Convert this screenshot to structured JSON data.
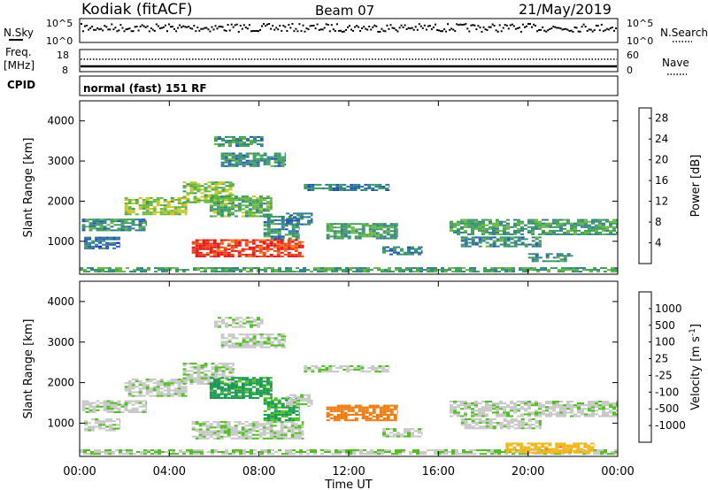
{
  "header": {
    "station": "Kodiak (fitACF)",
    "beam": "Beam 07",
    "date": "21/May/2019"
  },
  "status": {
    "nsky_label": "N.Sky",
    "nsky_top": "10^5",
    "nsky_bottom": "10^0",
    "nsearch_label": "N.Search",
    "nsearch_top": "10^5",
    "nsearch_bottom": "10^0",
    "freq_label": "Freq.",
    "freq_unit": "[MHz]",
    "freq_top": "18",
    "freq_bottom": "8",
    "nave_label": "Nave",
    "nave_top": "60",
    "nave_bottom": "0",
    "cpid_label": "CPID",
    "cpid_text": "normal (fast) 151 RF"
  },
  "chart_data": [
    {
      "type": "heatmap",
      "quantity": "Power",
      "ylabel": "Slant Range [km]",
      "xlabel": "Time UT",
      "x_ticks": [
        "00:00",
        "04:00",
        "08:00",
        "12:00",
        "16:00",
        "20:00",
        "00:00"
      ],
      "x_range_hours": [
        0,
        24
      ],
      "y_ticks": [
        1000,
        2000,
        3000,
        4000
      ],
      "ylim": [
        180,
        4500
      ],
      "colorbar": {
        "label": "Power [dB]",
        "ticks": [
          4,
          8,
          12,
          16,
          20,
          24,
          28
        ],
        "range": [
          0,
          30
        ],
        "colors": [
          "#1010e0",
          "#2850b8",
          "#2e7e8e",
          "#3c9c5c",
          "#64b83c",
          "#c8c820",
          "#e8b010",
          "#f07810",
          "#f04010",
          "#e81010"
        ]
      },
      "regions": [
        {
          "t0": 0.0,
          "t1": 24.0,
          "r0": 220,
          "r1": 320,
          "level": 0.35
        },
        {
          "t0": 0.1,
          "t1": 3.0,
          "r0": 1250,
          "r1": 1550,
          "level": 0.3
        },
        {
          "t0": 2.0,
          "t1": 4.8,
          "r0": 1650,
          "r1": 2100,
          "level": 0.5
        },
        {
          "t0": 4.6,
          "t1": 6.9,
          "r0": 1950,
          "r1": 2450,
          "level": 0.45
        },
        {
          "t0": 5.8,
          "t1": 8.6,
          "r0": 1600,
          "r1": 2100,
          "level": 0.4
        },
        {
          "t0": 6.0,
          "t1": 8.2,
          "r0": 3350,
          "r1": 3600,
          "level": 0.3
        },
        {
          "t0": 6.3,
          "t1": 9.2,
          "r0": 2850,
          "r1": 3200,
          "level": 0.3
        },
        {
          "t0": 5.0,
          "t1": 10.0,
          "r0": 600,
          "r1": 1050,
          "level": 0.9
        },
        {
          "t0": 8.2,
          "t1": 9.8,
          "r0": 1050,
          "r1": 1600,
          "level": 0.3
        },
        {
          "t0": 9.2,
          "t1": 10.4,
          "r0": 1400,
          "r1": 1700,
          "level": 0.25
        },
        {
          "t0": 10.0,
          "t1": 13.8,
          "r0": 2250,
          "r1": 2400,
          "level": 0.25
        },
        {
          "t0": 11.0,
          "t1": 14.2,
          "r0": 1050,
          "r1": 1450,
          "level": 0.35
        },
        {
          "t0": 13.5,
          "t1": 15.3,
          "r0": 650,
          "r1": 850,
          "level": 0.25
        },
        {
          "t0": 16.5,
          "t1": 24.0,
          "r0": 1150,
          "r1": 1550,
          "level": 0.35
        },
        {
          "t0": 17.0,
          "t1": 20.6,
          "r0": 850,
          "r1": 1100,
          "level": 0.3
        },
        {
          "t0": 20.0,
          "t1": 22.0,
          "r0": 480,
          "r1": 700,
          "level": 0.3
        },
        {
          "t0": 0.2,
          "t1": 1.8,
          "r0": 800,
          "r1": 1100,
          "level": 0.2
        }
      ]
    },
    {
      "type": "heatmap",
      "quantity": "Velocity",
      "ylabel": "Slant Range [km]",
      "xlabel": "Time UT",
      "x_ticks": [
        "00:00",
        "04:00",
        "08:00",
        "12:00",
        "16:00",
        "20:00",
        "00:00"
      ],
      "x_range_hours": [
        0,
        24
      ],
      "y_ticks": [
        1000,
        2000,
        3000,
        4000
      ],
      "ylim": [
        180,
        4500
      ],
      "colorbar": {
        "label": "Velocity [m s^-1]",
        "ticks": [
          1000,
          500,
          100,
          25,
          -25,
          -100,
          -500,
          -1000
        ],
        "colors": [
          "#2040c0",
          "#2c7ea0",
          "#1a9a50",
          "#50c020",
          "#c8c8c8",
          "#f0b820",
          "#f07c10",
          "#f04010",
          "#e81010"
        ]
      },
      "regions": [
        {
          "t0": 0.0,
          "t1": 24.0,
          "r0": 220,
          "r1": 320,
          "level": 0.45
        },
        {
          "t0": 0.1,
          "t1": 3.0,
          "r0": 1250,
          "r1": 1550,
          "level": 0.47
        },
        {
          "t0": 2.0,
          "t1": 4.8,
          "r0": 1650,
          "r1": 2100,
          "level": 0.47
        },
        {
          "t0": 4.6,
          "t1": 6.9,
          "r0": 1950,
          "r1": 2450,
          "level": 0.47
        },
        {
          "t0": 5.8,
          "t1": 8.6,
          "r0": 1600,
          "r1": 2100,
          "level": 0.3
        },
        {
          "t0": 6.0,
          "t1": 8.2,
          "r0": 3350,
          "r1": 3600,
          "level": 0.47
        },
        {
          "t0": 6.3,
          "t1": 9.2,
          "r0": 2850,
          "r1": 3200,
          "level": 0.47
        },
        {
          "t0": 5.0,
          "t1": 10.0,
          "r0": 600,
          "r1": 1050,
          "level": 0.47
        },
        {
          "t0": 8.2,
          "t1": 9.8,
          "r0": 1050,
          "r1": 1600,
          "level": 0.32
        },
        {
          "t0": 9.2,
          "t1": 10.4,
          "r0": 1400,
          "r1": 1700,
          "level": 0.47
        },
        {
          "t0": 10.0,
          "t1": 13.8,
          "r0": 2250,
          "r1": 2400,
          "level": 0.47
        },
        {
          "t0": 11.0,
          "t1": 14.2,
          "r0": 1050,
          "r1": 1450,
          "level": 0.72
        },
        {
          "t0": 13.5,
          "t1": 15.3,
          "r0": 650,
          "r1": 850,
          "level": 0.47
        },
        {
          "t0": 16.5,
          "t1": 24.0,
          "r0": 1150,
          "r1": 1550,
          "level": 0.47
        },
        {
          "t0": 17.0,
          "t1": 20.6,
          "r0": 850,
          "r1": 1100,
          "level": 0.47
        },
        {
          "t0": 19.0,
          "t1": 23.0,
          "r0": 250,
          "r1": 500,
          "level": 0.62
        },
        {
          "t0": 0.2,
          "t1": 1.8,
          "r0": 800,
          "r1": 1100,
          "level": 0.47
        }
      ]
    }
  ]
}
